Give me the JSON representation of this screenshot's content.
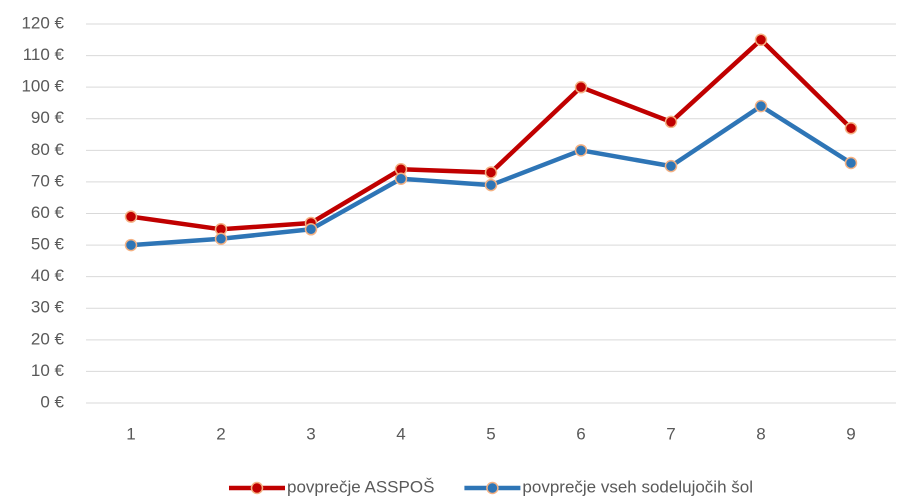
{
  "chart_data": {
    "type": "line",
    "categories": [
      "1",
      "2",
      "3",
      "4",
      "5",
      "6",
      "7",
      "8",
      "9"
    ],
    "series": [
      {
        "name": "povprečje ASSPOŠ",
        "color": "#c00000",
        "values": [
          59,
          55,
          57,
          74,
          73,
          100,
          89,
          115,
          87
        ]
      },
      {
        "name": "povprečje vseh sodelujočih šol",
        "color": "#2e75b6",
        "values": [
          50,
          52,
          55,
          71,
          69,
          80,
          75,
          94,
          76
        ]
      }
    ],
    "ylim": [
      0,
      120
    ],
    "yticks": [
      {
        "value": 0,
        "label": "0 €"
      },
      {
        "value": 10,
        "label": "10 €"
      },
      {
        "value": 20,
        "label": "20 €"
      },
      {
        "value": 30,
        "label": "30 €"
      },
      {
        "value": 40,
        "label": "40 €"
      },
      {
        "value": 50,
        "label": "50 €"
      },
      {
        "value": 60,
        "label": "60 €"
      },
      {
        "value": 70,
        "label": "70 €"
      },
      {
        "value": 80,
        "label": "80 €"
      },
      {
        "value": 90,
        "label": "90 €"
      },
      {
        "value": 100,
        "label": "100 €"
      },
      {
        "value": 110,
        "label": "110 €"
      },
      {
        "value": 120,
        "label": "120 €"
      }
    ],
    "grid": true,
    "legend": "bottom"
  }
}
